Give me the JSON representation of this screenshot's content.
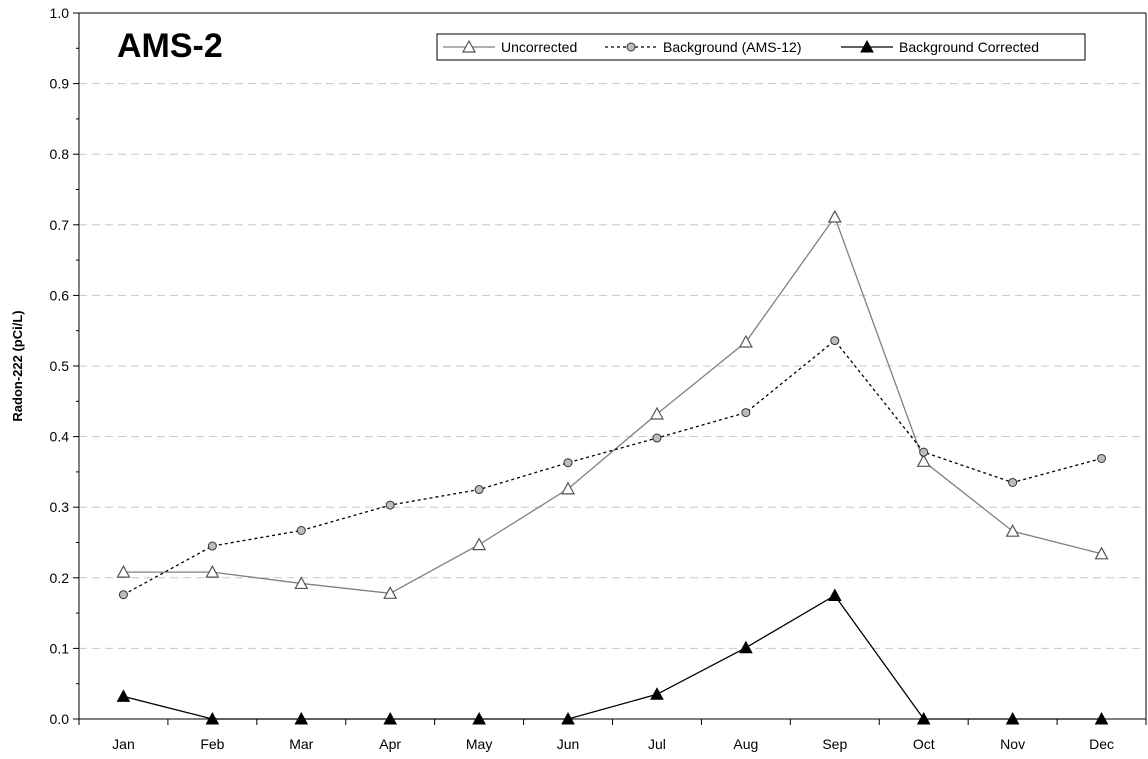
{
  "chart_data": {
    "type": "line",
    "title": "AMS-2",
    "xlabel": "",
    "ylabel": "Radon-222 (pCi/L)",
    "ylim": [
      0.0,
      1.0
    ],
    "yticks": [
      "0.0",
      "0.1",
      "0.2",
      "0.3",
      "0.4",
      "0.5",
      "0.6",
      "0.7",
      "0.8",
      "0.9",
      "1.0"
    ],
    "categories": [
      "Jan",
      "Feb",
      "Mar",
      "Apr",
      "May",
      "Jun",
      "Jul",
      "Aug",
      "Sep",
      "Oct",
      "Nov",
      "Dec"
    ],
    "grid": "horizontal dashed",
    "legend_position": "top-right",
    "series": [
      {
        "name": "Uncorrected",
        "values": [
          0.208,
          0.208,
          0.192,
          0.178,
          0.247,
          0.326,
          0.432,
          0.534,
          0.711,
          0.365,
          0.266,
          0.234
        ],
        "color": "#808080",
        "marker": "open-triangle",
        "dash": "solid"
      },
      {
        "name": "Background (AMS-12)",
        "values": [
          0.176,
          0.245,
          0.267,
          0.303,
          0.325,
          0.363,
          0.398,
          0.434,
          0.536,
          0.378,
          0.335,
          0.369
        ],
        "color": "#000000",
        "marker": "gray-circle",
        "dash": "dotted"
      },
      {
        "name": "Background Corrected",
        "values": [
          0.032,
          0.0,
          0.0,
          0.0,
          0.0,
          0.0,
          0.035,
          0.101,
          0.175,
          0.0,
          0.0,
          0.0
        ],
        "color": "#000000",
        "marker": "filled-triangle",
        "dash": "solid"
      }
    ]
  }
}
